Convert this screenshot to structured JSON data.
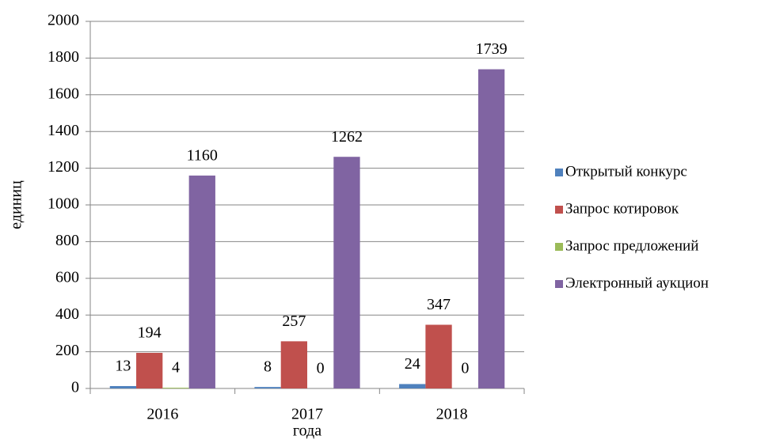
{
  "chart_data": {
    "type": "bar",
    "xlabel": "года",
    "ylabel": "единиц",
    "categories": [
      "2016",
      "2017",
      "2018"
    ],
    "series": [
      {
        "name": "Открытый конкурс",
        "color": "#4f81bd",
        "values": [
          13,
          8,
          24
        ]
      },
      {
        "name": "Запрос котировок",
        "color": "#c0504d",
        "values": [
          194,
          257,
          347
        ]
      },
      {
        "name": "Запрос предложений",
        "color": "#9bbb59",
        "values": [
          4,
          0,
          0
        ]
      },
      {
        "name": "Электронный аукцион",
        "color": "#8064a2",
        "values": [
          1160,
          1262,
          1739
        ]
      }
    ],
    "ylim": [
      0,
      2000
    ],
    "yticks": [
      0,
      200,
      400,
      600,
      800,
      1000,
      1200,
      1400,
      1600,
      1800,
      2000
    ],
    "grid": true,
    "legend": "right",
    "data_labels": true
  }
}
